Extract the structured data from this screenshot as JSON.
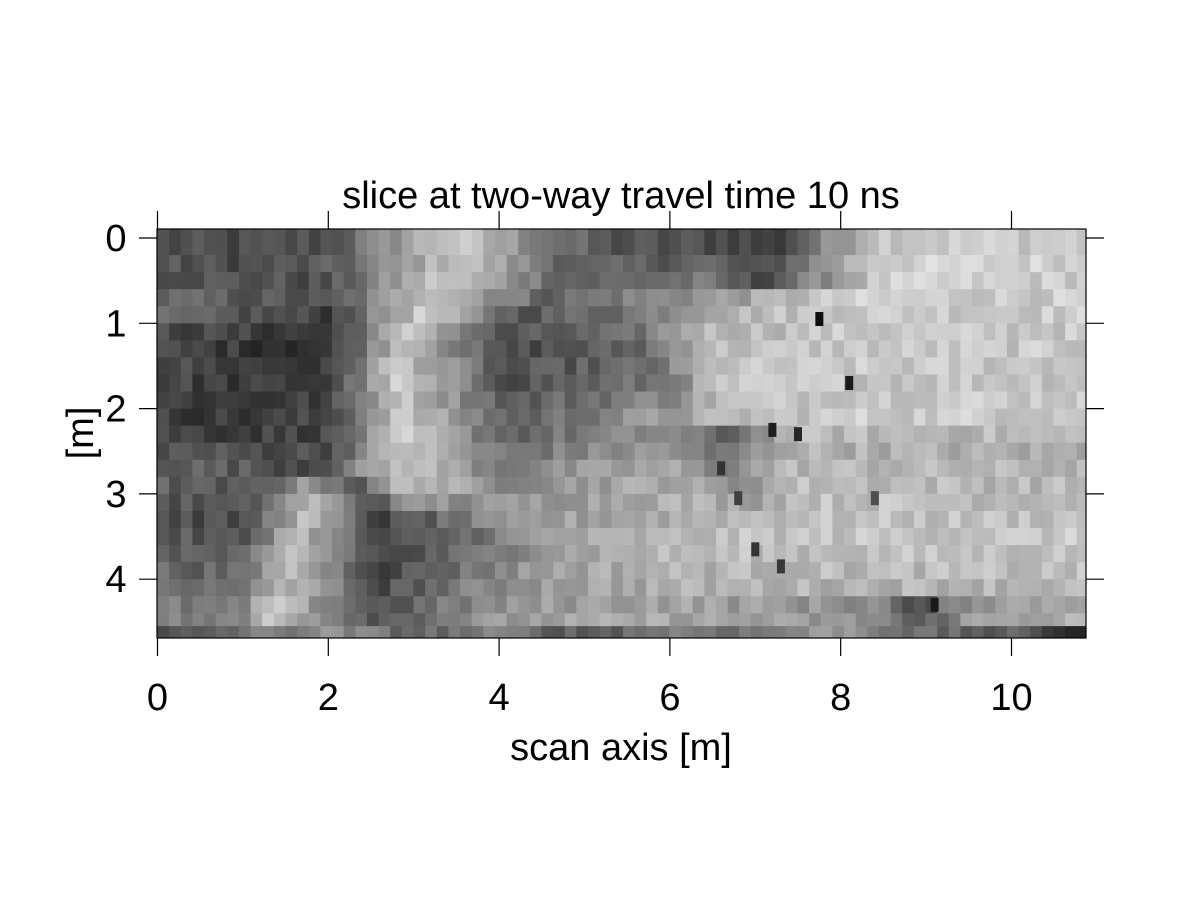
{
  "chart_data": {
    "type": "heatmap",
    "title": "slice at two-way travel time 10 ns",
    "xlabel": "scan axis [m]",
    "ylabel": "[m]",
    "colormap": "grayscale",
    "xlim": [
      0,
      10.9
    ],
    "ylim": [
      4.7,
      0
    ],
    "xticks": [
      0,
      2,
      4,
      6,
      8,
      10
    ],
    "yticks": [
      0,
      1,
      2,
      3,
      4
    ],
    "x_tick_labels": [
      "0",
      "2",
      "4",
      "6",
      "8",
      "10"
    ],
    "y_tick_labels": [
      "0",
      "1",
      "2",
      "3",
      "4"
    ],
    "grid": false,
    "value_range": [
      0,
      1
    ],
    "n_columns": 80,
    "bright_bodies": [
      {
        "description": "central bright anomaly",
        "x": [
          2.8,
          4.3
        ],
        "y": [
          0.0,
          3.1
        ],
        "value": 0.78
      },
      {
        "description": "lower-left bright anomaly",
        "x": [
          1.4,
          2.6
        ],
        "y": [
          2.9,
          4.7
        ],
        "value": 0.75
      },
      {
        "description": "right bright zone",
        "x": [
          6.3,
          10.9
        ],
        "y": [
          0.0,
          4.3
        ],
        "value": 0.8
      }
    ],
    "rows": [
      {
        "y": [
          0.0,
          0.2
        ],
        "segments": [
          [
            0.0,
            0.3
          ],
          [
            1.0,
            0.28
          ],
          [
            2.0,
            0.32
          ],
          [
            3.4,
            0.8
          ],
          [
            5.2,
            0.32
          ],
          [
            6.8,
            0.3
          ],
          [
            7.2,
            0.22
          ],
          [
            8.4,
            0.8
          ],
          [
            10.9,
            0.8
          ]
        ]
      },
      {
        "y": [
          0.2,
          0.4
        ],
        "segments": [
          [
            0.0,
            0.32
          ],
          [
            1.0,
            0.3
          ],
          [
            2.0,
            0.34
          ],
          [
            3.5,
            0.78
          ],
          [
            5.0,
            0.34
          ],
          [
            6.5,
            0.4
          ],
          [
            7.0,
            0.25
          ],
          [
            8.4,
            0.82
          ],
          [
            10.9,
            0.82
          ]
        ]
      },
      {
        "y": [
          0.4,
          0.6
        ],
        "segments": [
          [
            0.0,
            0.35
          ],
          [
            1.0,
            0.33
          ],
          [
            2.0,
            0.3
          ],
          [
            3.3,
            0.79
          ],
          [
            4.9,
            0.38
          ],
          [
            6.4,
            0.45
          ],
          [
            7.0,
            0.28
          ],
          [
            8.5,
            0.8
          ],
          [
            10.9,
            0.8
          ]
        ]
      },
      {
        "y": [
          0.6,
          0.8
        ],
        "segments": [
          [
            0.0,
            0.4
          ],
          [
            1.0,
            0.35
          ],
          [
            2.0,
            0.3
          ],
          [
            3.2,
            0.8
          ],
          [
            4.5,
            0.4
          ],
          [
            6.0,
            0.55
          ],
          [
            7.0,
            0.65
          ],
          [
            8.0,
            0.8
          ],
          [
            10.9,
            0.8
          ]
        ]
      },
      {
        "y": [
          0.8,
          1.0
        ],
        "segments": [
          [
            0.0,
            0.38
          ],
          [
            1.0,
            0.32
          ],
          [
            2.0,
            0.25
          ],
          [
            3.1,
            0.8
          ],
          [
            4.2,
            0.35
          ],
          [
            5.5,
            0.45
          ],
          [
            6.5,
            0.7
          ],
          [
            8.0,
            0.8
          ],
          [
            10.9,
            0.8
          ]
        ]
      },
      {
        "y": [
          1.0,
          1.2
        ],
        "segments": [
          [
            0.0,
            0.3
          ],
          [
            1.0,
            0.25
          ],
          [
            2.0,
            0.22
          ],
          [
            3.0,
            0.8
          ],
          [
            4.0,
            0.3
          ],
          [
            5.5,
            0.4
          ],
          [
            6.3,
            0.72
          ],
          [
            8.0,
            0.78
          ],
          [
            10.9,
            0.78
          ]
        ]
      },
      {
        "y": [
          1.2,
          1.4
        ],
        "segments": [
          [
            0.0,
            0.28
          ],
          [
            1.0,
            0.22
          ],
          [
            2.0,
            0.2
          ],
          [
            2.9,
            0.8
          ],
          [
            4.0,
            0.28
          ],
          [
            5.6,
            0.38
          ],
          [
            6.4,
            0.74
          ],
          [
            8.0,
            0.78
          ],
          [
            10.9,
            0.78
          ]
        ]
      },
      {
        "y": [
          1.4,
          1.6
        ],
        "segments": [
          [
            0.0,
            0.3
          ],
          [
            1.0,
            0.24
          ],
          [
            2.0,
            0.22
          ],
          [
            2.8,
            0.8
          ],
          [
            4.1,
            0.3
          ],
          [
            5.8,
            0.42
          ],
          [
            6.6,
            0.76
          ],
          [
            8.0,
            0.78
          ],
          [
            10.9,
            0.78
          ]
        ]
      },
      {
        "y": [
          1.6,
          1.8
        ],
        "segments": [
          [
            0.0,
            0.28
          ],
          [
            1.0,
            0.22
          ],
          [
            2.0,
            0.24
          ],
          [
            2.8,
            0.79
          ],
          [
            4.1,
            0.32
          ],
          [
            5.9,
            0.45
          ],
          [
            6.6,
            0.76
          ],
          [
            8.0,
            0.78
          ],
          [
            10.9,
            0.78
          ]
        ]
      },
      {
        "y": [
          1.8,
          2.0
        ],
        "segments": [
          [
            0.0,
            0.26
          ],
          [
            1.0,
            0.22
          ],
          [
            2.0,
            0.25
          ],
          [
            2.8,
            0.78
          ],
          [
            4.2,
            0.35
          ],
          [
            6.0,
            0.55
          ],
          [
            6.6,
            0.74
          ],
          [
            8.0,
            0.8
          ],
          [
            10.9,
            0.8
          ]
        ]
      },
      {
        "y": [
          2.0,
          2.2
        ],
        "segments": [
          [
            0.0,
            0.25
          ],
          [
            1.0,
            0.22
          ],
          [
            2.0,
            0.26
          ],
          [
            2.8,
            0.78
          ],
          [
            4.2,
            0.38
          ],
          [
            6.0,
            0.62
          ],
          [
            6.8,
            0.72
          ],
          [
            8.0,
            0.8
          ],
          [
            10.9,
            0.8
          ]
        ]
      },
      {
        "y": [
          2.2,
          2.4
        ],
        "segments": [
          [
            0.0,
            0.28
          ],
          [
            1.0,
            0.25
          ],
          [
            2.0,
            0.28
          ],
          [
            2.9,
            0.78
          ],
          [
            4.1,
            0.4
          ],
          [
            6.0,
            0.55
          ],
          [
            6.6,
            0.35
          ],
          [
            7.4,
            0.72
          ],
          [
            10.9,
            0.72
          ]
        ]
      },
      {
        "y": [
          2.4,
          2.6
        ],
        "segments": [
          [
            0.0,
            0.35
          ],
          [
            1.0,
            0.3
          ],
          [
            2.0,
            0.32
          ],
          [
            2.9,
            0.78
          ],
          [
            4.1,
            0.45
          ],
          [
            6.0,
            0.6
          ],
          [
            6.5,
            0.4
          ],
          [
            7.4,
            0.7
          ],
          [
            10.9,
            0.66
          ]
        ]
      },
      {
        "y": [
          2.6,
          2.8
        ],
        "segments": [
          [
            0.0,
            0.4
          ],
          [
            1.0,
            0.35
          ],
          [
            1.8,
            0.3
          ],
          [
            2.9,
            0.78
          ],
          [
            4.0,
            0.5
          ],
          [
            6.0,
            0.65
          ],
          [
            6.5,
            0.5
          ],
          [
            7.4,
            0.72
          ],
          [
            10.9,
            0.7
          ]
        ]
      },
      {
        "y": [
          2.8,
          3.0
        ],
        "segments": [
          [
            0.0,
            0.38
          ],
          [
            1.0,
            0.3
          ],
          [
            1.8,
            0.6
          ],
          [
            2.4,
            0.35
          ],
          [
            2.9,
            0.78
          ],
          [
            3.9,
            0.55
          ],
          [
            6.0,
            0.68
          ],
          [
            6.7,
            0.55
          ],
          [
            7.5,
            0.74
          ],
          [
            10.9,
            0.72
          ]
        ]
      },
      {
        "y": [
          3.0,
          3.2
        ],
        "segments": [
          [
            0.0,
            0.35
          ],
          [
            1.0,
            0.3
          ],
          [
            1.8,
            0.72
          ],
          [
            2.5,
            0.35
          ],
          [
            3.1,
            0.6
          ],
          [
            3.6,
            0.55
          ],
          [
            6.0,
            0.7
          ],
          [
            7.0,
            0.65
          ],
          [
            7.5,
            0.76
          ],
          [
            10.9,
            0.74
          ]
        ]
      },
      {
        "y": [
          3.2,
          3.4
        ],
        "segments": [
          [
            0.0,
            0.32
          ],
          [
            1.0,
            0.28
          ],
          [
            1.7,
            0.74
          ],
          [
            2.6,
            0.25
          ],
          [
            3.5,
            0.45
          ],
          [
            4.5,
            0.6
          ],
          [
            6.0,
            0.68
          ],
          [
            7.0,
            0.75
          ],
          [
            10.9,
            0.76
          ]
        ]
      },
      {
        "y": [
          3.4,
          3.6
        ],
        "segments": [
          [
            0.0,
            0.35
          ],
          [
            1.0,
            0.3
          ],
          [
            1.6,
            0.76
          ],
          [
            2.6,
            0.25
          ],
          [
            3.5,
            0.4
          ],
          [
            4.5,
            0.62
          ],
          [
            6.0,
            0.7
          ],
          [
            7.0,
            0.76
          ],
          [
            10.9,
            0.78
          ]
        ]
      },
      {
        "y": [
          3.6,
          3.8
        ],
        "segments": [
          [
            0.0,
            0.4
          ],
          [
            1.0,
            0.35
          ],
          [
            1.6,
            0.76
          ],
          [
            2.7,
            0.25
          ],
          [
            3.6,
            0.42
          ],
          [
            4.5,
            0.62
          ],
          [
            6.0,
            0.72
          ],
          [
            7.0,
            0.74
          ],
          [
            10.9,
            0.76
          ]
        ]
      },
      {
        "y": [
          3.8,
          4.0
        ],
        "segments": [
          [
            0.0,
            0.42
          ],
          [
            1.0,
            0.38
          ],
          [
            1.5,
            0.76
          ],
          [
            2.6,
            0.28
          ],
          [
            3.6,
            0.45
          ],
          [
            4.5,
            0.63
          ],
          [
            6.0,
            0.7
          ],
          [
            7.0,
            0.72
          ],
          [
            10.9,
            0.74
          ]
        ]
      },
      {
        "y": [
          4.0,
          4.2
        ],
        "segments": [
          [
            0.0,
            0.45
          ],
          [
            1.0,
            0.4
          ],
          [
            1.4,
            0.76
          ],
          [
            2.6,
            0.3
          ],
          [
            3.6,
            0.48
          ],
          [
            4.5,
            0.62
          ],
          [
            6.0,
            0.68
          ],
          [
            7.0,
            0.7
          ],
          [
            10.9,
            0.72
          ]
        ]
      },
      {
        "y": [
          4.2,
          4.4
        ],
        "segments": [
          [
            0.0,
            0.48
          ],
          [
            1.0,
            0.45
          ],
          [
            1.3,
            0.78
          ],
          [
            2.6,
            0.32
          ],
          [
            3.6,
            0.5
          ],
          [
            4.5,
            0.6
          ],
          [
            6.0,
            0.65
          ],
          [
            8.5,
            0.55
          ],
          [
            8.8,
            0.22
          ],
          [
            9.5,
            0.6
          ],
          [
            10.9,
            0.7
          ]
        ]
      },
      {
        "y": [
          4.4,
          4.55
        ],
        "segments": [
          [
            0.0,
            0.5
          ],
          [
            1.0,
            0.48
          ],
          [
            1.3,
            0.8
          ],
          [
            2.6,
            0.35
          ],
          [
            3.6,
            0.55
          ],
          [
            4.5,
            0.62
          ],
          [
            6.0,
            0.66
          ],
          [
            8.5,
            0.55
          ],
          [
            8.9,
            0.3
          ],
          [
            9.5,
            0.62
          ],
          [
            10.9,
            0.7
          ]
        ]
      },
      {
        "y": [
          4.55,
          4.7
        ],
        "segments": [
          [
            0.0,
            0.25
          ],
          [
            1.0,
            0.45
          ],
          [
            2.0,
            0.55
          ],
          [
            3.0,
            0.4
          ],
          [
            4.0,
            0.48
          ],
          [
            5.0,
            0.35
          ],
          [
            6.0,
            0.5
          ],
          [
            7.0,
            0.45
          ],
          [
            8.0,
            0.62
          ],
          [
            9.0,
            0.4
          ],
          [
            10.0,
            0.35
          ],
          [
            10.9,
            0.15
          ]
        ]
      }
    ],
    "dark_spots": [
      {
        "x": 7.75,
        "y": 0.95,
        "value": 0.05
      },
      {
        "x": 8.1,
        "y": 1.7,
        "value": 0.1
      },
      {
        "x": 7.2,
        "y": 2.25,
        "value": 0.12
      },
      {
        "x": 7.5,
        "y": 2.3,
        "value": 0.15
      },
      {
        "x": 6.6,
        "y": 2.7,
        "value": 0.2
      },
      {
        "x": 6.8,
        "y": 3.05,
        "value": 0.25
      },
      {
        "x": 7.0,
        "y": 3.65,
        "value": 0.2
      },
      {
        "x": 7.3,
        "y": 3.85,
        "value": 0.22
      },
      {
        "x": 8.4,
        "y": 3.05,
        "value": 0.3
      },
      {
        "x": 9.1,
        "y": 4.3,
        "value": 0.1
      }
    ]
  }
}
